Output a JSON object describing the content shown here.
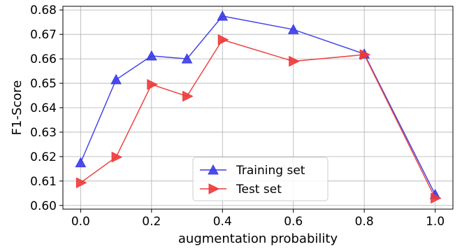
{
  "chart_data": {
    "type": "line",
    "title": "",
    "xlabel": "augmentation probability",
    "ylabel": "F1-Score",
    "xlim": [
      -0.05,
      1.05
    ],
    "ylim": [
      0.5985,
      0.6815
    ],
    "grid": true,
    "legend_position": "bottom-center",
    "x_ticks": [
      0.0,
      0.2,
      0.4,
      0.6,
      0.8,
      1.0
    ],
    "x_tick_labels": [
      "0.0",
      "0.2",
      "0.4",
      "0.6",
      "0.8",
      "1.0"
    ],
    "y_ticks": [
      0.6,
      0.61,
      0.62,
      0.63,
      0.64,
      0.65,
      0.66,
      0.67,
      0.68
    ],
    "y_tick_labels": [
      "0.60",
      "0.61",
      "0.62",
      "0.63",
      "0.64",
      "0.65",
      "0.66",
      "0.67",
      "0.68"
    ],
    "x": [
      0.0,
      0.1,
      0.2,
      0.3,
      0.4,
      0.6,
      0.8,
      1.0
    ],
    "series": [
      {
        "name": "Training set",
        "color": "#3b3be8",
        "marker": "triangle-up",
        "values": [
          0.6175,
          0.6515,
          0.6612,
          0.66,
          0.6775,
          0.672,
          0.662,
          0.6045
        ]
      },
      {
        "name": "Test set",
        "color": "#ee3a3a",
        "marker": "triangle-right",
        "values": [
          0.6093,
          0.6198,
          0.6495,
          0.6447,
          0.6678,
          0.659,
          0.6617,
          0.603
        ]
      }
    ]
  }
}
